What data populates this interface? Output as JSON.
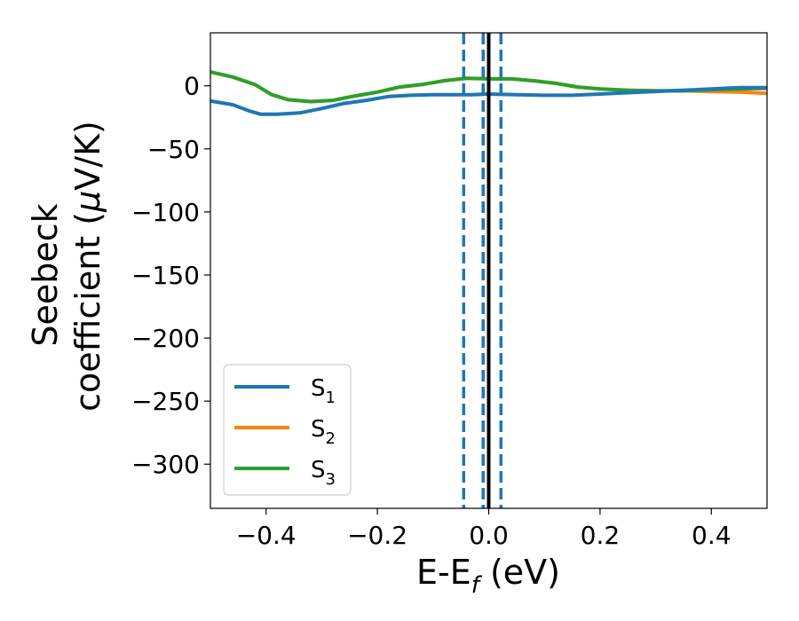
{
  "chart_data": {
    "type": "line",
    "xlabel_main": "E-E",
    "xlabel_sub": "f",
    "xlabel_unit": " (eV)",
    "ylabel_line1": "Seebeck",
    "ylabel_line2": "coefficient  (",
    "ylabel_mu": "μ",
    "ylabel_unit": "V/K)",
    "xlim": [
      -0.5,
      0.5
    ],
    "ylim": [
      -335,
      42
    ],
    "x_ticks": [
      -0.4,
      -0.2,
      0.0,
      0.2,
      0.4
    ],
    "x_tick_labels": [
      "−0.4",
      "−0.2",
      "0.0",
      "0.2",
      "0.4"
    ],
    "y_ticks": [
      0,
      -50,
      -100,
      -150,
      -200,
      -250,
      -300
    ],
    "y_tick_labels": [
      "0",
      "−50",
      "−100",
      "−150",
      "−200",
      "−250",
      "−300"
    ],
    "vlines_dashed": [
      -0.045,
      -0.01,
      0.022
    ],
    "vline_solid": 0.0,
    "dashed_color": "#1f77b4",
    "solid_color": "#000000",
    "legend_position": "lower-left",
    "series": [
      {
        "name": "S",
        "sub": "1",
        "color": "#1f77b4",
        "x": [
          -0.5,
          -0.46,
          -0.43,
          -0.41,
          -0.38,
          -0.34,
          -0.3,
          -0.26,
          -0.22,
          -0.18,
          -0.14,
          -0.1,
          -0.06,
          -0.03,
          0.0,
          0.05,
          0.1,
          0.15,
          0.2,
          0.25,
          0.3,
          0.35,
          0.4,
          0.45,
          0.5
        ],
        "y": [
          -12,
          -15,
          -20,
          -22.5,
          -22.5,
          -21.5,
          -18,
          -14,
          -11.5,
          -8.5,
          -7.5,
          -7,
          -7,
          -7,
          -6.5,
          -7,
          -7.5,
          -7.5,
          -6.5,
          -5.5,
          -4.5,
          -3.5,
          -2.5,
          -1.5,
          -1.5
        ]
      },
      {
        "name": "S",
        "sub": "2",
        "color": "#ff7f0e",
        "x": [
          -0.5,
          -0.46,
          -0.42,
          -0.39,
          -0.36,
          -0.32,
          -0.28,
          -0.24,
          -0.2,
          -0.16,
          -0.12,
          -0.08,
          -0.04,
          0.0,
          0.04,
          0.08,
          0.12,
          0.16,
          0.2,
          0.25,
          0.3,
          0.35,
          0.4,
          0.45,
          0.5
        ],
        "y": [
          11,
          7,
          1,
          -7,
          -11,
          -12.5,
          -11.5,
          -8,
          -5,
          -1,
          1,
          4,
          6,
          5.5,
          5.5,
          4,
          2,
          -1,
          -2.5,
          -3.5,
          -4,
          -4,
          -4.5,
          -5,
          -6
        ]
      },
      {
        "name": "S",
        "sub": "3",
        "color": "#2ca02c",
        "x": [
          -0.5,
          -0.46,
          -0.42,
          -0.39,
          -0.36,
          -0.32,
          -0.28,
          -0.24,
          -0.2,
          -0.16,
          -0.12,
          -0.08,
          -0.04,
          0.0,
          0.04,
          0.08,
          0.12,
          0.16,
          0.2,
          0.25,
          0.3,
          0.35,
          0.4,
          0.45,
          0.5
        ],
        "y": [
          11,
          7,
          1,
          -7,
          -11,
          -12.5,
          -11.5,
          -8,
          -5,
          -1,
          1,
          4,
          6,
          5.5,
          5.5,
          4,
          2,
          -1,
          -2.5,
          -3.5,
          -4,
          -4,
          -3,
          -2.5,
          -2
        ]
      }
    ]
  }
}
